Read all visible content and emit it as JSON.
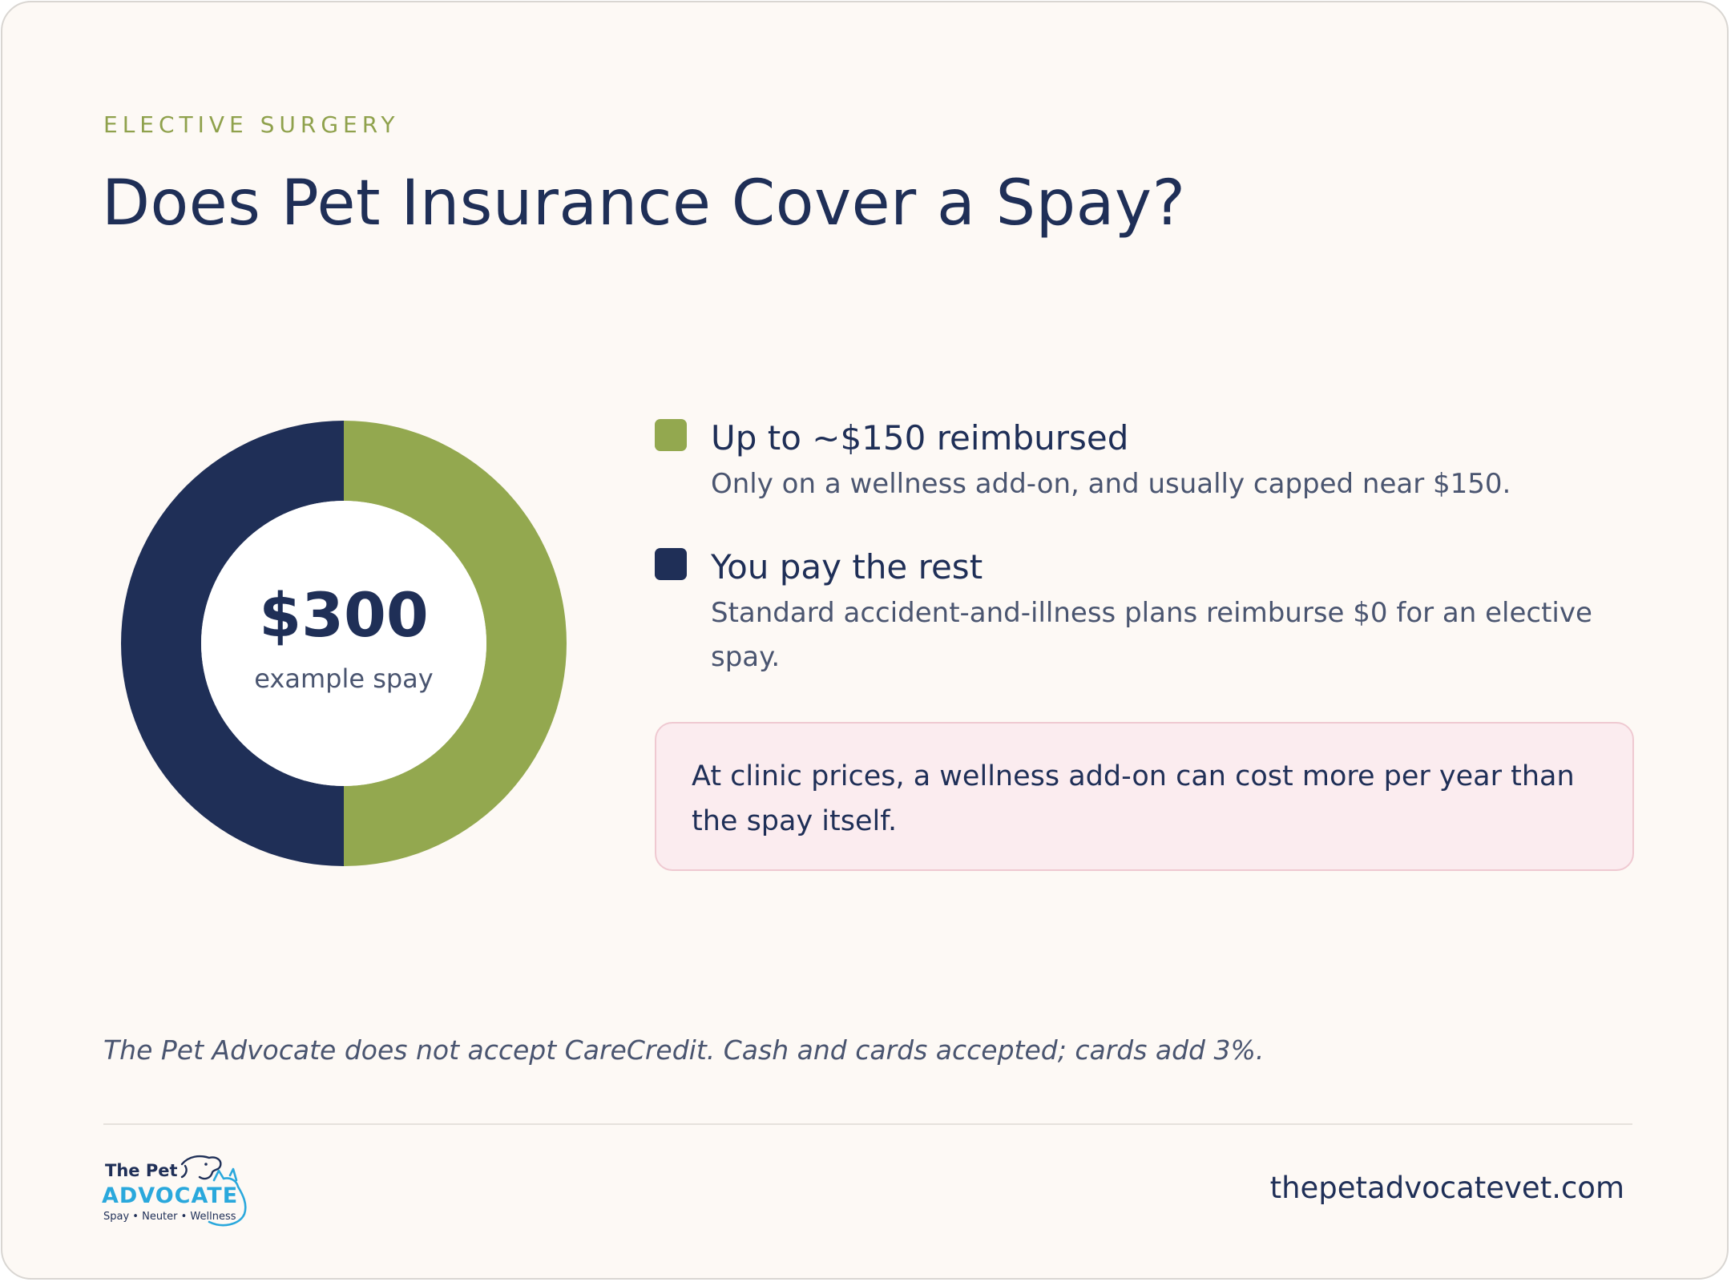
{
  "header": {
    "eyebrow": "ELECTIVE SURGERY",
    "title": "Does Pet Insurance Cover a Spay?"
  },
  "donut": {
    "amount": "$300",
    "caption": "example spay"
  },
  "chart_data": {
    "type": "pie",
    "style": "donut",
    "total": 300,
    "slices": [
      {
        "label": "Up to ~$150 reimbursed",
        "value": 150,
        "color": "#93a84f"
      },
      {
        "label": "You pay the rest",
        "value": 150,
        "color": "#1f2f57"
      }
    ],
    "legend_position": "right"
  },
  "legend": {
    "items": [
      {
        "title": "Up to ~$150 reimbursed",
        "description": "Only on a wellness add-on, and usually capped near $150.",
        "color": "#93a84f"
      },
      {
        "title": "You pay the rest",
        "description": "Standard accident-and-illness plans reimburse $0 for an elective spay.",
        "color": "#1f2f57"
      }
    ]
  },
  "note": {
    "text": "At clinic prices, a wellness add-on can cost more per year than the spay itself."
  },
  "footer": {
    "footnote": "The Pet Advocate does not accept CareCredit. Cash and cards accepted; cards add 3%.",
    "website": "thepetadvocatevet.com",
    "logo": {
      "line1": "The Pet",
      "line2": "ADVOCATE",
      "line3": "Spay • Neuter • Wellness",
      "icon": "dog-cat-outline-icon"
    }
  },
  "colors": {
    "background": "#fdf9f5",
    "navy": "#1f2f57",
    "green": "#93a84f",
    "note_bg": "#fbecef",
    "note_border": "#efc9d1",
    "logo_blue": "#2aa8dc"
  }
}
